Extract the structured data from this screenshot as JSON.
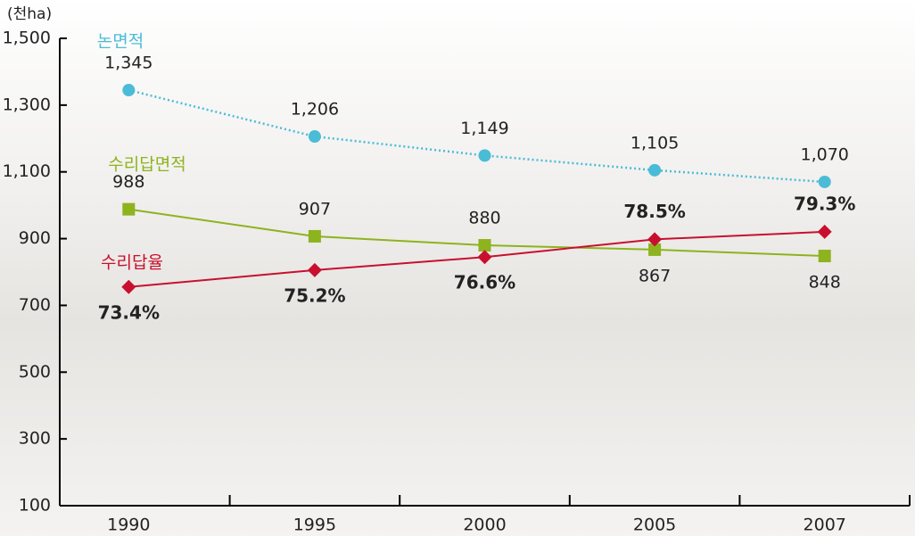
{
  "chart_data": {
    "type": "line",
    "y_label": "(천ha)",
    "categories": [
      "1990",
      "1995",
      "2000",
      "2005",
      "2007"
    ],
    "ylim": [
      100,
      1500
    ],
    "yticks": [
      {
        "value": 1500,
        "label": "1,500"
      },
      {
        "value": 1300,
        "label": "1,300"
      },
      {
        "value": 1100,
        "label": "1,100"
      },
      900,
      700,
      500,
      300,
      100
    ],
    "y2lim": [
      50,
      100
    ],
    "series": [
      {
        "name": "논면적",
        "color": "#4bbcd6",
        "marker": "circle",
        "line_style": "dotted",
        "values": [
          1345,
          1206,
          1149,
          1105,
          1070
        ],
        "value_labels": [
          "1,345",
          "1,206",
          "1,149",
          "1,105",
          "1,070"
        ]
      },
      {
        "name": "수리답면적",
        "color": "#8db31e",
        "marker": "square",
        "line_style": "solid",
        "values": [
          988,
          907,
          880,
          867,
          848
        ]
      },
      {
        "name": "수리답율",
        "color": "#c8102e",
        "marker": "diamond",
        "line_style": "solid",
        "axis": "y2",
        "values": [
          73.4,
          75.2,
          76.6,
          78.5,
          79.3
        ],
        "value_labels": [
          "73.4%",
          "75.2%",
          "76.6%",
          "78.5%",
          "79.3%"
        ]
      }
    ]
  }
}
